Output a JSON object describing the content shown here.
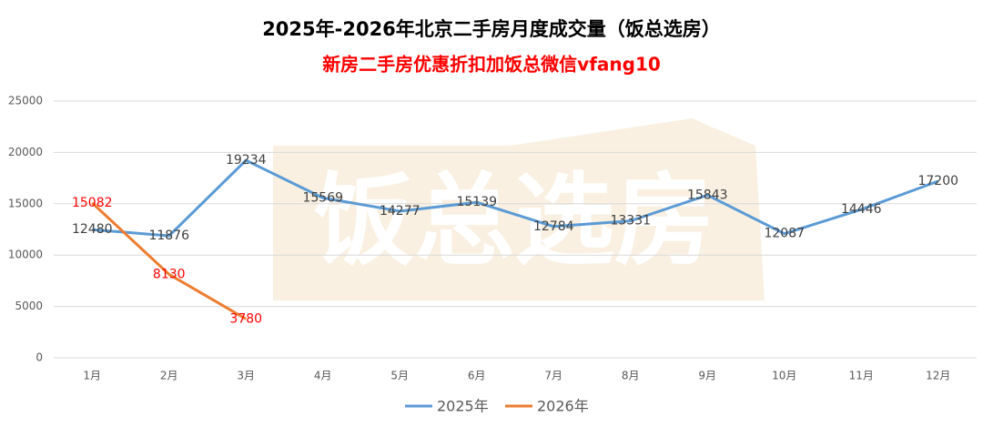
{
  "chart_data": {
    "type": "line",
    "title": "2025年-2026年北京二手房月度成交量（饭总选房）",
    "subtitle": "新房二手房优惠折扣加饭总微信vfang10",
    "watermark": "饭总选房",
    "categories": [
      "1月",
      "2月",
      "3月",
      "4月",
      "5月",
      "6月",
      "7月",
      "8月",
      "9月",
      "10月",
      "11月",
      "12月"
    ],
    "series": [
      {
        "name": "2025年",
        "color": "#5b9bd5",
        "values": [
          12480,
          11876,
          19234,
          15569,
          14277,
          15139,
          12784,
          13331,
          15843,
          12087,
          14446,
          17200
        ]
      },
      {
        "name": "2026年",
        "color": "#ed7d31",
        "values": [
          15082,
          8130,
          3780,
          null,
          null,
          null,
          null,
          null,
          null,
          null,
          null,
          null
        ]
      }
    ],
    "ylim": [
      0,
      25000
    ],
    "yticks": [
      0,
      5000,
      10000,
      15000,
      20000,
      25000
    ],
    "grid": true,
    "legend": "bottom"
  }
}
